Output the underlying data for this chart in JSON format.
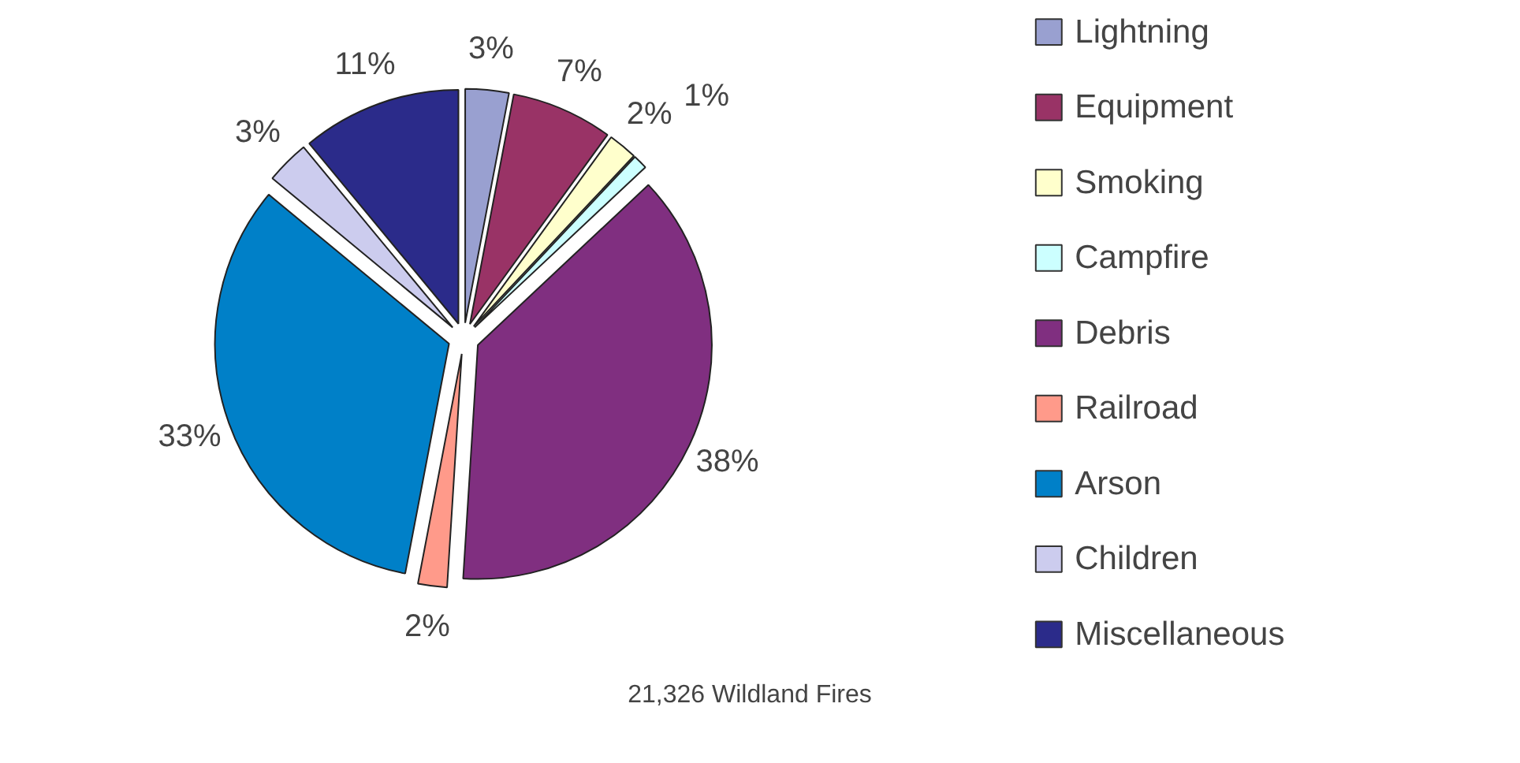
{
  "chart_data": {
    "type": "pie",
    "categories": [
      "Lightning",
      "Equipment",
      "Smoking",
      "Campfire",
      "Debris",
      "Railroad",
      "Arson",
      "Children",
      "Miscellaneous"
    ],
    "values": [
      3,
      7,
      2,
      1,
      38,
      2,
      33,
      3,
      11
    ],
    "colors": [
      "#99a0d0",
      "#993366",
      "#ffffcc",
      "#ccffff",
      "#802f80",
      "#ff9a8a",
      "#0080c8",
      "#ccccee",
      "#2b2b8a"
    ],
    "value_labels": [
      "3%",
      "7%",
      "2%",
      "1%",
      "38%",
      "2%",
      "33%",
      "3%",
      "11%"
    ],
    "annotations": [
      "21,326 Wildland Fires"
    ],
    "legend": "right"
  }
}
